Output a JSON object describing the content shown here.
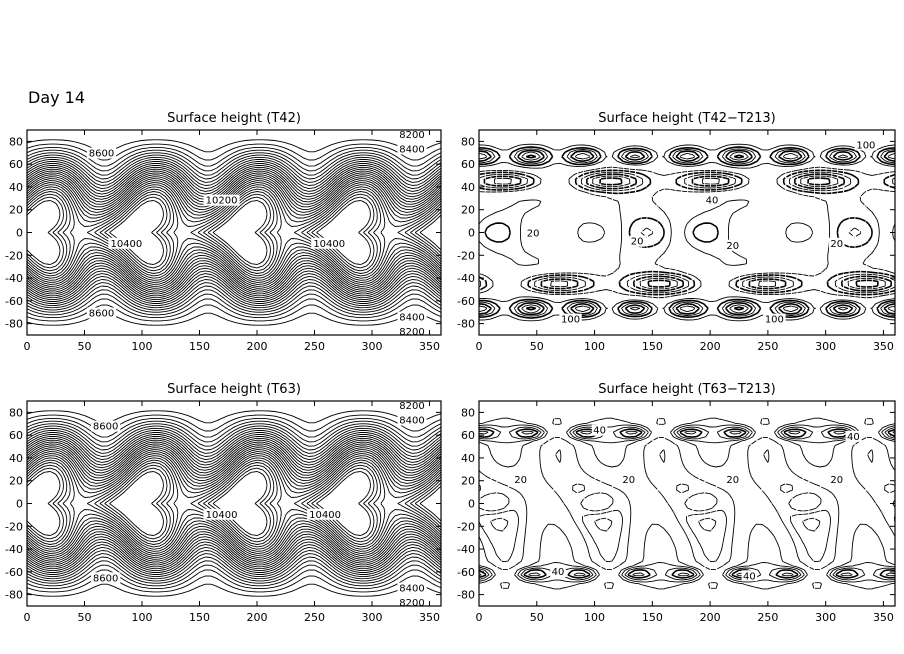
{
  "figure_label": "Day 14",
  "chart_data": [
    {
      "type": "contour",
      "title": "Surface height (T42)",
      "xlabel": "",
      "ylabel": "",
      "xlim": [
        0,
        360
      ],
      "ylim": [
        -90,
        90
      ],
      "xticks": [
        0,
        50,
        100,
        150,
        200,
        250,
        300,
        350
      ],
      "yticks": [
        80,
        60,
        40,
        20,
        0,
        -20,
        -40,
        -60,
        -80
      ],
      "contour_labels": [
        "8200",
        "8400",
        "8600",
        "10200",
        "10400",
        "8400",
        "8200",
        "8600",
        "10400"
      ],
      "grid": false,
      "pattern": "wave4-height"
    },
    {
      "type": "contour",
      "title": "Surface height (T42−T213)",
      "xlabel": "",
      "ylabel": "",
      "xlim": [
        0,
        360
      ],
      "ylim": [
        -90,
        90
      ],
      "xticks": [
        0,
        50,
        100,
        150,
        200,
        250,
        300,
        350
      ],
      "yticks": [
        80,
        60,
        40,
        20,
        0,
        -20,
        -40,
        -60,
        -80
      ],
      "contour_labels": [
        "100",
        "20",
        "20",
        "20",
        "20",
        "40",
        "100",
        "100"
      ],
      "grid": false,
      "pattern": "difference-strong"
    },
    {
      "type": "contour",
      "title": "Surface height (T63)",
      "xlabel": "",
      "ylabel": "",
      "xlim": [
        0,
        360
      ],
      "ylim": [
        -90,
        90
      ],
      "xticks": [
        0,
        50,
        100,
        150,
        200,
        250,
        300,
        350
      ],
      "yticks": [
        80,
        60,
        40,
        20,
        0,
        -20,
        -40,
        -60,
        -80
      ],
      "contour_labels": [
        "8200",
        "8400",
        "8600",
        "10400",
        "10400",
        "8600",
        "8400",
        "8200"
      ],
      "grid": false,
      "pattern": "wave4-height"
    },
    {
      "type": "contour",
      "title": "Surface height (T63−T213)",
      "xlabel": "",
      "ylabel": "",
      "xlim": [
        0,
        360
      ],
      "ylim": [
        -90,
        90
      ],
      "xticks": [
        0,
        50,
        100,
        150,
        200,
        250,
        300,
        350
      ],
      "yticks": [
        80,
        60,
        40,
        20,
        0,
        -20,
        -40,
        -60,
        -80
      ],
      "contour_labels": [
        "40",
        "40",
        "20",
        "20",
        "20",
        "20",
        "40",
        "40"
      ],
      "grid": false,
      "pattern": "difference-weak"
    }
  ]
}
